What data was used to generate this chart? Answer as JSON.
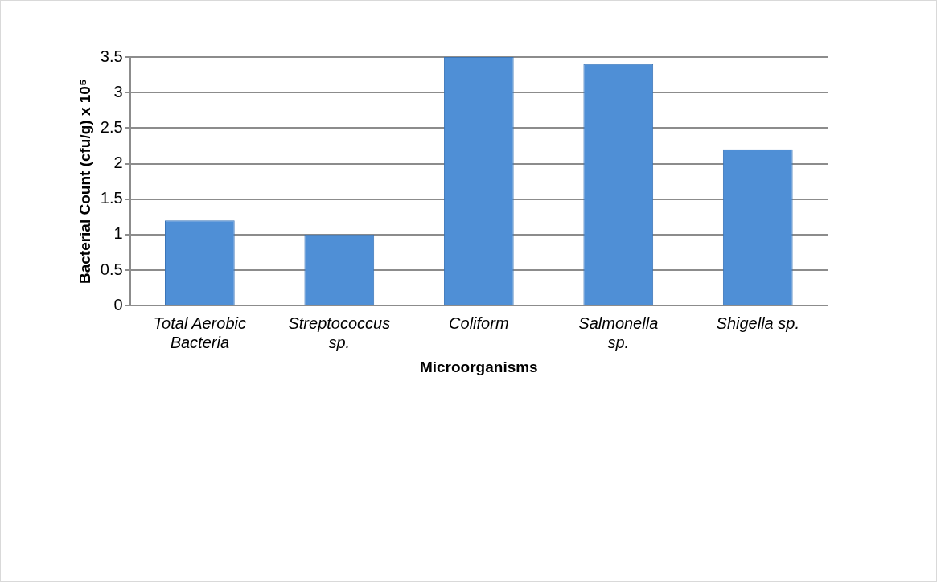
{
  "chart_data": {
    "type": "bar",
    "xlabel": "Microorganisms",
    "ylabel": "Bacterial Count (cfu/g) x 10⁵",
    "categories": [
      "Total Aerobic Bacteria",
      "Streptococcus sp.",
      "Coliform",
      "Salmonella sp.",
      "Shigella sp."
    ],
    "values": [
      1.2,
      1.0,
      3.5,
      3.4,
      2.2
    ],
    "color": "#4f8fd6",
    "ylim": [
      0,
      3.5
    ],
    "yticks": [
      0,
      0.5,
      1,
      1.5,
      2,
      2.5,
      3,
      3.5
    ],
    "grid": "y",
    "legend": false
  }
}
